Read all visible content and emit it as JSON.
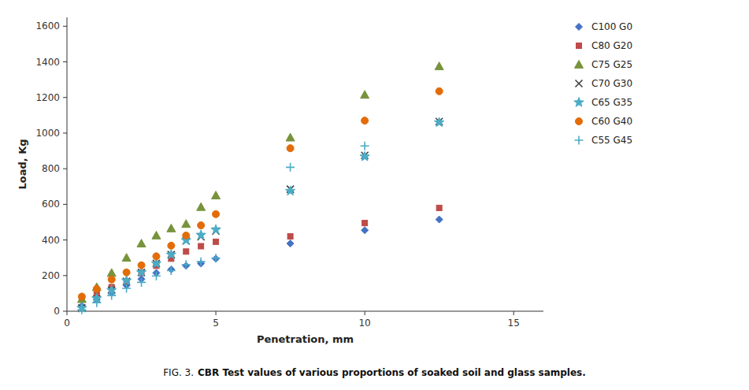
{
  "chart_data": {
    "type": "scatter",
    "x_label": "Penetration, mm",
    "y_label": "Load, Kg",
    "annotations": [
      "FIG. 3.",
      "CBR Test values of various proportions of soaked soil and glass samples."
    ],
    "xlim": [
      0,
      16
    ],
    "ylim": [
      0,
      1650
    ],
    "xticks": [
      0,
      5,
      10,
      15
    ],
    "yticks": [
      0,
      200,
      400,
      600,
      800,
      1000,
      1200,
      1400,
      1600
    ],
    "series": [
      {
        "name": "C100 G0",
        "color": "#4472C4",
        "marker": "diamond",
        "x": [
          0.5,
          1.0,
          1.5,
          2.0,
          2.5,
          3.0,
          3.5,
          4.0,
          4.5,
          5.0,
          7.5,
          10.0,
          12.5
        ],
        "values": [
          30,
          65,
          105,
          145,
          180,
          215,
          235,
          255,
          268,
          295,
          380,
          455,
          515
        ]
      },
      {
        "name": "C80 G20",
        "color": "#BE4B48",
        "marker": "square",
        "x": [
          0.5,
          1.0,
          1.5,
          2.0,
          2.5,
          3.0,
          3.5,
          4.0,
          4.5,
          5.0,
          7.5,
          10.0,
          12.5
        ],
        "values": [
          72,
          95,
          135,
          168,
          215,
          255,
          295,
          335,
          365,
          390,
          420,
          495,
          580
        ]
      },
      {
        "name": "C75 G25",
        "color": "#77933C",
        "marker": "triangle",
        "x": [
          0.5,
          1.0,
          1.5,
          2.0,
          2.5,
          3.0,
          3.5,
          4.0,
          4.5,
          5.0,
          7.5,
          10.0,
          12.5
        ],
        "values": [
          68,
          135,
          215,
          300,
          380,
          425,
          465,
          490,
          585,
          650,
          975,
          1215,
          1375
        ]
      },
      {
        "name": "C70 G30",
        "color": "#404040",
        "marker": "x",
        "x": [
          0.5,
          1.0,
          1.5,
          2.0,
          2.5,
          3.0,
          3.5,
          4.0,
          4.5,
          5.0,
          7.5,
          10.0,
          12.5
        ],
        "values": [
          18,
          68,
          118,
          168,
          218,
          268,
          318,
          395,
          418,
          450,
          685,
          875,
          1065
        ]
      },
      {
        "name": "C65 G35",
        "color": "#4BACC6",
        "marker": "star",
        "x": [
          0.5,
          1.0,
          1.5,
          2.0,
          2.5,
          3.0,
          3.5,
          4.0,
          4.5,
          5.0,
          7.5,
          10.0,
          12.5
        ],
        "values": [
          18,
          72,
          118,
          172,
          218,
          268,
          318,
          398,
          428,
          458,
          675,
          868,
          1060
        ]
      },
      {
        "name": "C60 G40",
        "color": "#E36C09",
        "marker": "circle",
        "x": [
          0.5,
          1.0,
          1.5,
          2.0,
          2.5,
          3.0,
          3.5,
          4.0,
          4.5,
          5.0,
          7.5,
          10.0,
          12.5
        ],
        "values": [
          82,
          125,
          178,
          218,
          258,
          308,
          368,
          425,
          482,
          545,
          915,
          1070,
          1235
        ]
      },
      {
        "name": "C55 G45",
        "color": "#4BACC6",
        "marker": "plus",
        "x": [
          0.5,
          1.0,
          1.5,
          2.0,
          2.5,
          3.0,
          3.5,
          4.0,
          4.5,
          5.0,
          7.5,
          10.0
        ],
        "values": [
          8,
          48,
          88,
          128,
          162,
          198,
          228,
          262,
          278,
          298,
          808,
          928
        ]
      }
    ]
  }
}
